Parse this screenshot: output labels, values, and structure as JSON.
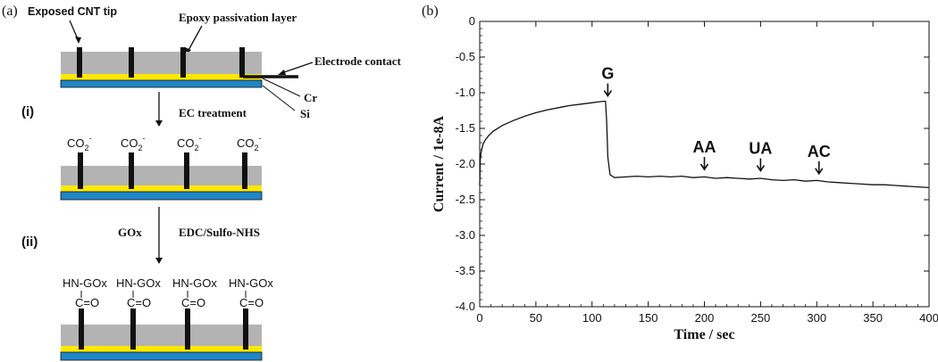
{
  "panel_a": {
    "label": "(a)",
    "exposed_tip": "Exposed CNT tip",
    "epoxy": "Epoxy passivation layer",
    "electrode_contact": "Electrode contact",
    "cr": "Cr",
    "si": "Si",
    "step_i": "(i)",
    "ec_treatment": "EC treatment",
    "co2": "CO",
    "co2_sub": "2",
    "co2_sup": "-",
    "step_ii": "(ii)",
    "gox": "GOx",
    "edc": "EDC/Sulfo-NHS",
    "hn_gox": "HN-GOx",
    "c_eq_o": "C=O"
  },
  "panel_b": {
    "label": "(b)"
  },
  "chart_data": {
    "type": "line",
    "xlabel": "Time / sec",
    "ylabel": "Current / 1e-8A",
    "xlim": [
      0,
      400
    ],
    "ylim": [
      -4.0,
      0
    ],
    "xticks": [
      "0",
      "50",
      "100",
      "150",
      "200",
      "250",
      "300",
      "350",
      "400"
    ],
    "yticks": [
      "0",
      "-0.5",
      "-1.0",
      "-1.5",
      "-2.0",
      "-2.5",
      "-3.0",
      "-3.5",
      "-4.0"
    ],
    "series": [
      {
        "x": [
          0,
          0.5,
          1,
          2,
          3,
          5,
          8,
          12,
          20,
          30,
          40,
          50,
          60,
          70,
          80,
          90,
          100,
          105,
          110,
          112,
          113,
          114,
          116,
          120,
          130,
          140,
          150,
          160,
          170,
          180,
          190,
          200,
          210,
          220,
          230,
          240,
          250,
          260,
          270,
          280,
          290,
          300,
          310,
          320,
          330,
          340,
          350,
          360,
          370,
          380,
          390,
          400
        ],
        "y": [
          -2.3,
          -1.95,
          -1.85,
          -1.78,
          -1.72,
          -1.66,
          -1.6,
          -1.54,
          -1.46,
          -1.39,
          -1.33,
          -1.28,
          -1.24,
          -1.21,
          -1.18,
          -1.16,
          -1.14,
          -1.13,
          -1.12,
          -1.12,
          -1.4,
          -1.9,
          -2.15,
          -2.19,
          -2.18,
          -2.17,
          -2.18,
          -2.17,
          -2.18,
          -2.17,
          -2.19,
          -2.18,
          -2.2,
          -2.19,
          -2.2,
          -2.21,
          -2.2,
          -2.22,
          -2.23,
          -2.22,
          -2.24,
          -2.23,
          -2.25,
          -2.26,
          -2.27,
          -2.28,
          -2.29,
          -2.29,
          -2.3,
          -2.31,
          -2.32,
          -2.33
        ]
      }
    ],
    "annotations": [
      {
        "text": "G",
        "x": 114,
        "y": -1.12
      },
      {
        "text": "AA",
        "x": 200,
        "y": -2.15
      },
      {
        "text": "UA",
        "x": 250,
        "y": -2.17
      },
      {
        "text": "AC",
        "x": 302,
        "y": -2.21
      }
    ],
    "grid": false,
    "legend": "none"
  }
}
